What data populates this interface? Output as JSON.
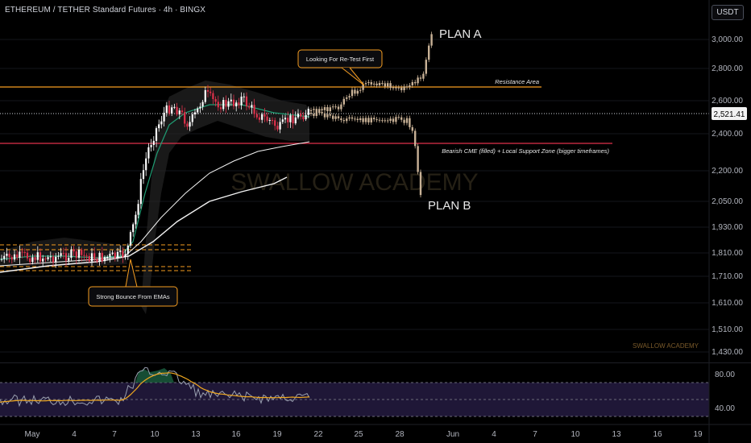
{
  "header": {
    "title": "ETHEREUM / TETHER Standard Futures · 4h · BINGX",
    "unit": "USDT"
  },
  "price_axis": {
    "ticks": [
      "3,000.00",
      "2,800.00",
      "2,600.00",
      "2,400.00",
      "2,200.00",
      "2,050.00",
      "1,930.00",
      "1,810.00",
      "1,710.00",
      "1,610.00",
      "1,510.00",
      "1,430.00"
    ],
    "current_price": "2,521.41"
  },
  "oscillator_axis": {
    "ticks": [
      "80.00",
      "40.00"
    ]
  },
  "time_axis": {
    "ticks": [
      "May",
      "4",
      "7",
      "10",
      "13",
      "16",
      "19",
      "22",
      "25",
      "28",
      "Jun",
      "4",
      "7",
      "10",
      "13",
      "16",
      "19"
    ]
  },
  "annotations": {
    "plan_a": "PLAN A",
    "plan_b": "PLAN B",
    "retest": "Looking For Re-Test First",
    "resistance": "Resistance Area",
    "support": "Bearish CME (filled) + Local Support Zone (bigger timeframes)",
    "bounce": "Strong Bounce From EMAs"
  },
  "watermark": "SWALLOW ACADEMY",
  "signature": "SWALLOW ACADEMY",
  "colors": {
    "resistance_line": "#f59d20",
    "support_line": "#e0314b",
    "bull_candle": "#ffffff",
    "bear_candle": "#e0314b",
    "projection": "#c8b196",
    "ema_fast": "#1f9e74",
    "oscillator_band": "#2a1f4a",
    "oscillator_signal": "#f0a81f"
  }
}
